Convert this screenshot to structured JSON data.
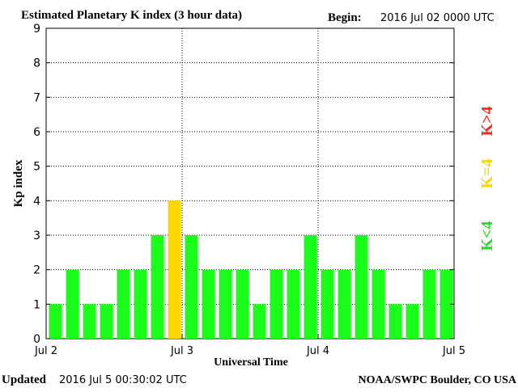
{
  "header": {
    "title": "Estimated Planetary K index (3 hour data)",
    "begin_label": "Begin:",
    "begin_value": "2016 Jul 02 0000 UTC"
  },
  "footer": {
    "updated_label": "Updated",
    "updated_value": "2016 Jul  5 00:30:02 UTC",
    "credit": "NOAA/SWPC Boulder, CO USA"
  },
  "legend": [
    {
      "text": "K>4",
      "color": "#ff2a1a"
    },
    {
      "text": "K=4",
      "color": "#ffd400"
    },
    {
      "text": "K<4",
      "color": "#22dd22"
    }
  ],
  "colors": {
    "below": "#1aff1a",
    "equal": "#ffd700",
    "above": "#ff2020",
    "grid": "#000000"
  },
  "chart_data": {
    "type": "bar",
    "xlabel": "Universal Time",
    "ylabel": "Kp index",
    "ylim": [
      0,
      9
    ],
    "yticks": [
      0,
      1,
      2,
      3,
      4,
      5,
      6,
      7,
      8,
      9
    ],
    "xtick_labels": [
      "Jul 2",
      "Jul 3",
      "Jul 4",
      "Jul 5"
    ],
    "grid": "dotted, at day boundaries and integer Kp levels",
    "values": [
      1,
      2,
      1,
      1,
      2,
      2,
      3,
      4,
      3,
      2,
      2,
      2,
      1,
      2,
      2,
      3,
      2,
      2,
      3,
      2,
      1,
      1,
      2,
      2
    ]
  }
}
